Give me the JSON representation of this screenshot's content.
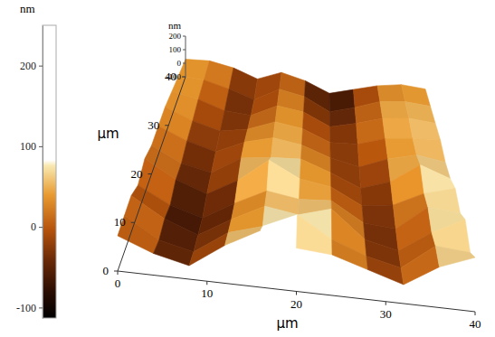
{
  "chart_data": {
    "type": "surface",
    "x_label": "µm",
    "y_label": "µm",
    "z_label": "nm",
    "x": [
      0,
      4,
      8,
      12,
      16,
      20,
      24,
      28,
      32,
      36,
      40
    ],
    "y": [
      0,
      4,
      8,
      12,
      16,
      20,
      24,
      28,
      32,
      36,
      40
    ],
    "cells": [
      [
        30,
        -20,
        -50,
        40,
        110,
        60,
        50,
        10,
        -30,
        50,
        100
      ],
      [
        40,
        -40,
        -70,
        20,
        60,
        120,
        40,
        -10,
        -40,
        60,
        50
      ],
      [
        50,
        -30,
        -80,
        0,
        70,
        50,
        90,
        -20,
        -50,
        40,
        110
      ],
      [
        20,
        -50,
        -90,
        -10,
        60,
        40,
        50,
        -30,
        -40,
        70,
        60
      ],
      [
        60,
        -20,
        -70,
        10,
        120,
        50,
        30,
        -40,
        -20,
        50,
        90
      ],
      [
        40,
        -30,
        -60,
        30,
        50,
        60,
        10,
        -50,
        0,
        100,
        50
      ],
      [
        50,
        -10,
        -50,
        20,
        60,
        40,
        -10,
        -40,
        20,
        60,
        40
      ],
      [
        60,
        0,
        -40,
        -10,
        50,
        30,
        -30,
        -20,
        30,
        50,
        60
      ],
      [
        50,
        20,
        -30,
        -40,
        40,
        20,
        -50,
        -10,
        40,
        60,
        50
      ],
      [
        40,
        30,
        -10,
        -60,
        30,
        0,
        -80,
        -30,
        30,
        50,
        40
      ],
      [
        30,
        40,
        10,
        -50,
        20,
        -20,
        -90,
        -40,
        10,
        40,
        30
      ]
    ],
    "xlim": [
      0,
      40
    ],
    "ylim": [
      0,
      40
    ],
    "zlim": [
      -100,
      200
    ],
    "xticks": [
      0,
      10,
      20,
      30,
      40
    ],
    "yticks": [
      0,
      10,
      20,
      30,
      40
    ],
    "zticks": [
      -100,
      0,
      100,
      200
    ],
    "colorbar": {
      "label": "nm",
      "lim": [
        -113,
        250
      ],
      "ticks": [
        -100,
        0,
        100,
        200
      ]
    }
  }
}
